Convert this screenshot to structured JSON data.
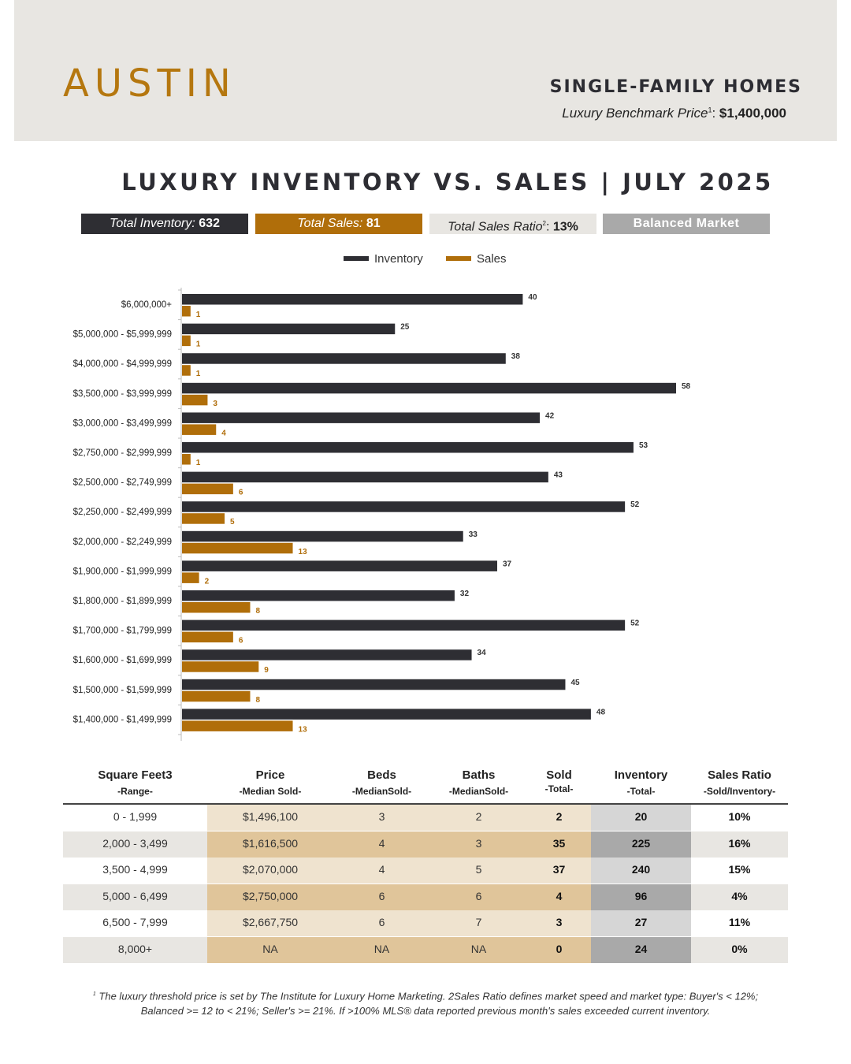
{
  "header": {
    "city": "AUSTIN",
    "segment": "SINGLE-FAMILY HOMES",
    "benchmark_label": "Luxury Benchmark Price",
    "benchmark_sup": "1",
    "benchmark_value": "$1,400,000"
  },
  "title": "LUXURY INVENTORY VS. SALES | JULY 2025",
  "summary": {
    "inventory_label": "Total Inventory:",
    "inventory_value": "632",
    "sales_label": "Total Sales:",
    "sales_value": "81",
    "ratio_label": "Total Sales Ratio",
    "ratio_sup": "2",
    "ratio_value": "13%",
    "market": "Balanced Market"
  },
  "colors": {
    "inventory": "#2e2e33",
    "sales": "#b06e0a",
    "header_bg": "#e8e6e2",
    "accent": "#b5770f"
  },
  "chart_data": {
    "type": "bar",
    "orientation": "horizontal",
    "legend_position": "top-center",
    "xlim": [
      0,
      60
    ],
    "categories": [
      "$6,000,000+",
      "$5,000,000 - $5,999,999",
      "$4,000,000 - $4,999,999",
      "$3,500,000 - $3,999,999",
      "$3,000,000 - $3,499,999",
      "$2,750,000 - $2,999,999",
      "$2,500,000 - $2,749,999",
      "$2,250,000 - $2,499,999",
      "$2,000,000 - $2,249,999",
      "$1,900,000 - $1,999,999",
      "$1,800,000 - $1,899,999",
      "$1,700,000 - $1,799,999",
      "$1,600,000 - $1,699,999",
      "$1,500,000 - $1,599,999",
      "$1,400,000 - $1,499,999"
    ],
    "series": [
      {
        "name": "Inventory",
        "color": "#2e2e33",
        "values": [
          40,
          25,
          38,
          58,
          42,
          53,
          43,
          52,
          33,
          37,
          32,
          52,
          34,
          45,
          48
        ]
      },
      {
        "name": "Sales",
        "color": "#b06e0a",
        "values": [
          1,
          1,
          1,
          3,
          4,
          1,
          6,
          5,
          13,
          2,
          8,
          6,
          9,
          8,
          13
        ]
      }
    ]
  },
  "table": {
    "headers": [
      {
        "title": "Square Feet3",
        "sub": "-Range-"
      },
      {
        "title": "Price",
        "sub": "-Median Sold-"
      },
      {
        "title": "Beds",
        "sub": "-MedianSold-"
      },
      {
        "title": "Baths",
        "sub": "-MedianSold-"
      },
      {
        "title": "Sold",
        "sub": "-Total-"
      },
      {
        "title": "Inventory",
        "sub": "-Total-"
      },
      {
        "title": "Sales Ratio",
        "sub": "-Sold/Inventory-"
      }
    ],
    "rows": [
      [
        "0 - 1,999",
        "$1,496,100",
        "3",
        "2",
        "2",
        "20",
        "10%"
      ],
      [
        "2,000 - 3,499",
        "$1,616,500",
        "4",
        "3",
        "35",
        "225",
        "16%"
      ],
      [
        "3,500 - 4,999",
        "$2,070,000",
        "4",
        "5",
        "37",
        "240",
        "15%"
      ],
      [
        "5,000 - 6,499",
        "$2,750,000",
        "6",
        "6",
        "4",
        "96",
        "4%"
      ],
      [
        "6,500 - 7,999",
        "$2,667,750",
        "6",
        "7",
        "3",
        "27",
        "11%"
      ],
      [
        "8,000+",
        "NA",
        "NA",
        "NA",
        "0",
        "24",
        "0%"
      ]
    ]
  },
  "footnote": {
    "sup": "1",
    "line1": "The luxury threshold price is set by The Institute for Luxury Home Marketing. 2Sales Ratio defines market speed and market type: Buyer's < 12%;",
    "line2": "Balanced >= 12 to < 21%; Seller's >= 21%. If >100% MLS® data reported previous month's sales exceeded current inventory."
  }
}
